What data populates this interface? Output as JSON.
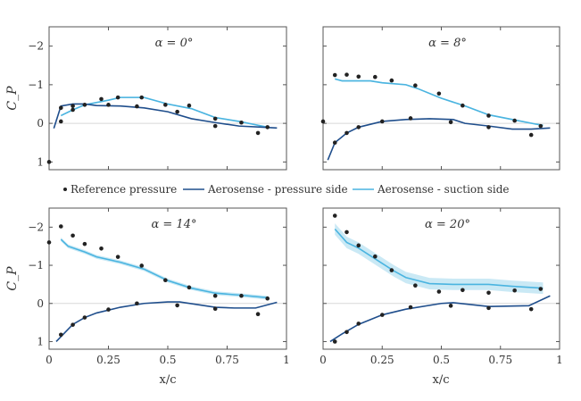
{
  "chart_data": {
    "type": "line",
    "ylabel": "C_P",
    "xlabel": "x/c",
    "xlim": [
      0,
      1
    ],
    "ylim": [
      -2.5,
      1.2
    ],
    "y_inverted": true,
    "xticks": [
      "0",
      "0.25",
      "0.5",
      "0.75",
      "1"
    ],
    "yticks": [
      "−2",
      "−1",
      "0",
      "1"
    ],
    "xtick_values": [
      0,
      0.25,
      0.5,
      0.75,
      1
    ],
    "ytick_values": [
      -2,
      -1,
      0,
      1
    ],
    "colors": {
      "pressure": "#1f4e8c",
      "suction": "#4ab4e0",
      "band": "#bde3f3",
      "reference": "#222222",
      "zero_line": "#d8d8d8"
    },
    "legend": {
      "placement": "center-between-rows",
      "entries": [
        "Reference pressure",
        "Aerosense - pressure side",
        "Aerosense - suction side"
      ]
    },
    "panels": [
      {
        "title": "α = 0°",
        "reference": [
          [
            0,
            1.0
          ],
          [
            0.05,
            -0.4
          ],
          [
            0.05,
            -0.05
          ],
          [
            0.1,
            -0.35
          ],
          [
            0.1,
            -0.45
          ],
          [
            0.15,
            -0.48
          ],
          [
            0.22,
            -0.63
          ],
          [
            0.25,
            -0.48
          ],
          [
            0.29,
            -0.67
          ],
          [
            0.37,
            -0.44
          ],
          [
            0.39,
            -0.67
          ],
          [
            0.49,
            -0.48
          ],
          [
            0.54,
            -0.3
          ],
          [
            0.59,
            -0.46
          ],
          [
            0.7,
            -0.12
          ],
          [
            0.7,
            0.07
          ],
          [
            0.81,
            -0.02
          ],
          [
            0.88,
            0.25
          ],
          [
            0.92,
            0.1
          ]
        ],
        "suction": [
          [
            0.05,
            -0.2
          ],
          [
            0.1,
            -0.35
          ],
          [
            0.15,
            -0.48
          ],
          [
            0.25,
            -0.6
          ],
          [
            0.3,
            -0.67
          ],
          [
            0.4,
            -0.67
          ],
          [
            0.5,
            -0.5
          ],
          [
            0.6,
            -0.38
          ],
          [
            0.7,
            -0.15
          ],
          [
            0.8,
            -0.05
          ],
          [
            0.88,
            0.05
          ],
          [
            0.92,
            0.1
          ]
        ],
        "suction_band": 0.02,
        "pressure": [
          [
            0.02,
            0.13
          ],
          [
            0.05,
            -0.45
          ],
          [
            0.1,
            -0.5
          ],
          [
            0.15,
            -0.5
          ],
          [
            0.2,
            -0.46
          ],
          [
            0.3,
            -0.45
          ],
          [
            0.4,
            -0.4
          ],
          [
            0.5,
            -0.3
          ],
          [
            0.6,
            -0.12
          ],
          [
            0.7,
            -0.02
          ],
          [
            0.8,
            0.07
          ],
          [
            0.9,
            0.1
          ],
          [
            0.96,
            0.12
          ]
        ]
      },
      {
        "title": "α = 8°",
        "reference": [
          [
            0,
            -0.05
          ],
          [
            0.05,
            -1.25
          ],
          [
            0.1,
            -1.26
          ],
          [
            0.15,
            -1.21
          ],
          [
            0.22,
            -1.2
          ],
          [
            0.29,
            -1.11
          ],
          [
            0.39,
            -0.98
          ],
          [
            0.49,
            -0.77
          ],
          [
            0.59,
            -0.46
          ],
          [
            0.7,
            -0.2
          ],
          [
            0.81,
            -0.07
          ],
          [
            0.88,
            0.3
          ],
          [
            0.92,
            0.07
          ],
          [
            0.05,
            0.5
          ],
          [
            0.1,
            0.25
          ],
          [
            0.15,
            0.1
          ],
          [
            0.25,
            -0.05
          ],
          [
            0.37,
            -0.13
          ],
          [
            0.54,
            -0.03
          ],
          [
            0.7,
            0.1
          ]
        ],
        "suction": [
          [
            0.05,
            -1.15
          ],
          [
            0.08,
            -1.1
          ],
          [
            0.2,
            -1.1
          ],
          [
            0.25,
            -1.05
          ],
          [
            0.35,
            -1.0
          ],
          [
            0.4,
            -0.9
          ],
          [
            0.5,
            -0.65
          ],
          [
            0.6,
            -0.45
          ],
          [
            0.7,
            -0.22
          ],
          [
            0.8,
            -0.1
          ],
          [
            0.9,
            0.02
          ],
          [
            0.93,
            0.05
          ]
        ],
        "suction_band": 0.02,
        "pressure": [
          [
            0.02,
            0.95
          ],
          [
            0.05,
            0.5
          ],
          [
            0.1,
            0.25
          ],
          [
            0.15,
            0.1
          ],
          [
            0.25,
            -0.05
          ],
          [
            0.35,
            -0.1
          ],
          [
            0.45,
            -0.12
          ],
          [
            0.55,
            -0.1
          ],
          [
            0.6,
            0.0
          ],
          [
            0.7,
            0.07
          ],
          [
            0.8,
            0.15
          ],
          [
            0.88,
            0.15
          ],
          [
            0.96,
            0.12
          ]
        ]
      },
      {
        "title": "α = 14°",
        "reference": [
          [
            0,
            -1.6
          ],
          [
            0.05,
            -2.02
          ],
          [
            0.1,
            -1.78
          ],
          [
            0.15,
            -1.56
          ],
          [
            0.22,
            -1.44
          ],
          [
            0.29,
            -1.22
          ],
          [
            0.39,
            -0.99
          ],
          [
            0.49,
            -0.61
          ],
          [
            0.59,
            -0.42
          ],
          [
            0.7,
            -0.2
          ],
          [
            0.81,
            -0.2
          ],
          [
            0.92,
            -0.13
          ],
          [
            0.05,
            0.82
          ],
          [
            0.1,
            0.56
          ],
          [
            0.15,
            0.37
          ],
          [
            0.25,
            0.16
          ],
          [
            0.37,
            0.0
          ],
          [
            0.54,
            0.05
          ],
          [
            0.7,
            0.14
          ],
          [
            0.88,
            0.28
          ]
        ],
        "suction": [
          [
            0.05,
            -1.68
          ],
          [
            0.08,
            -1.5
          ],
          [
            0.15,
            -1.35
          ],
          [
            0.2,
            -1.22
          ],
          [
            0.3,
            -1.08
          ],
          [
            0.4,
            -0.9
          ],
          [
            0.5,
            -0.6
          ],
          [
            0.6,
            -0.4
          ],
          [
            0.7,
            -0.27
          ],
          [
            0.8,
            -0.22
          ],
          [
            0.92,
            -0.15
          ]
        ],
        "suction_band": 0.05,
        "pressure": [
          [
            0.03,
            1.0
          ],
          [
            0.1,
            0.55
          ],
          [
            0.15,
            0.37
          ],
          [
            0.2,
            0.25
          ],
          [
            0.3,
            0.1
          ],
          [
            0.4,
            0.0
          ],
          [
            0.5,
            -0.04
          ],
          [
            0.55,
            -0.04
          ],
          [
            0.7,
            0.1
          ],
          [
            0.78,
            0.12
          ],
          [
            0.87,
            0.12
          ],
          [
            0.96,
            -0.03
          ]
        ]
      },
      {
        "title": "α = 20°",
        "reference": [
          [
            0.05,
            -2.3
          ],
          [
            0.1,
            -1.87
          ],
          [
            0.15,
            -1.52
          ],
          [
            0.22,
            -1.23
          ],
          [
            0.29,
            -0.87
          ],
          [
            0.39,
            -0.47
          ],
          [
            0.49,
            -0.31
          ],
          [
            0.59,
            -0.35
          ],
          [
            0.7,
            -0.28
          ],
          [
            0.81,
            -0.34
          ],
          [
            0.92,
            -0.38
          ],
          [
            0.05,
            1.0
          ],
          [
            0.1,
            0.75
          ],
          [
            0.15,
            0.53
          ],
          [
            0.25,
            0.3
          ],
          [
            0.37,
            0.1
          ],
          [
            0.54,
            0.06
          ],
          [
            0.7,
            0.12
          ],
          [
            0.88,
            0.15
          ]
        ],
        "suction": [
          [
            0.05,
            -1.95
          ],
          [
            0.1,
            -1.6
          ],
          [
            0.15,
            -1.45
          ],
          [
            0.25,
            -1.05
          ],
          [
            0.3,
            -0.85
          ],
          [
            0.35,
            -0.68
          ],
          [
            0.45,
            -0.52
          ],
          [
            0.55,
            -0.5
          ],
          [
            0.7,
            -0.5
          ],
          [
            0.8,
            -0.45
          ],
          [
            0.93,
            -0.4
          ]
        ],
        "suction_band": 0.15,
        "pressure": [
          [
            0.03,
            1.0
          ],
          [
            0.08,
            0.8
          ],
          [
            0.15,
            0.55
          ],
          [
            0.25,
            0.3
          ],
          [
            0.35,
            0.15
          ],
          [
            0.5,
            0.0
          ],
          [
            0.55,
            -0.02
          ],
          [
            0.7,
            0.08
          ],
          [
            0.87,
            0.06
          ],
          [
            0.96,
            -0.2
          ]
        ]
      }
    ]
  }
}
